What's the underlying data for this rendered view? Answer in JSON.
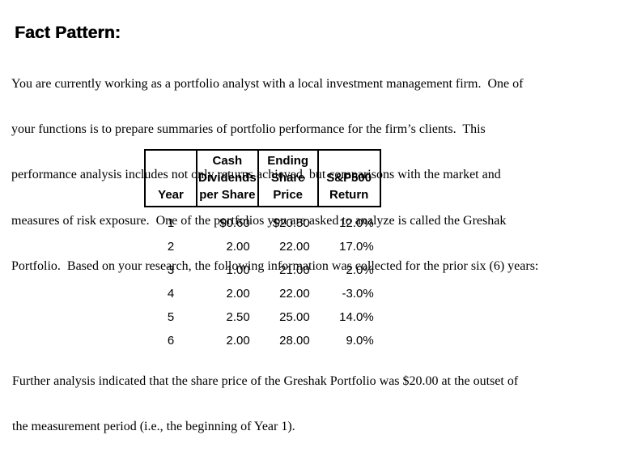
{
  "doc": {
    "heading": "Fact Pattern:",
    "intro_lines": [
      "You are currently working as a portfolio analyst with a local investment management firm.  One of",
      "your functions is to prepare summaries of portfolio performance for the firm’s clients.  This",
      "performance analysis includes not only returns achieved, but comparisons with the market and",
      "measures of risk exposure.  One of the portfolios you are asked to analyze is called the Greshak",
      "Portfolio.  Based on your research, the following information was collected for the prior six (6) years:"
    ],
    "footer_lines": [
      "Further analysis indicated that the share price of the Greshak Portfolio was $20.00 at the outset of",
      "the measurement period (i.e., the beginning of Year 1)."
    ]
  },
  "table": {
    "headers": [
      {
        "lines": [
          "Year"
        ]
      },
      {
        "lines": [
          "Cash",
          "Dividends",
          "per Share"
        ]
      },
      {
        "lines": [
          "Ending",
          "Share",
          "Price"
        ]
      },
      {
        "lines": [
          "S&P500",
          "Return"
        ]
      }
    ],
    "rows": [
      {
        "year": "1",
        "dividend": "$0.60",
        "price": "$20.50",
        "sp500": "12.0%"
      },
      {
        "year": "2",
        "dividend": "2.00",
        "price": "22.00",
        "sp500": "17.0%"
      },
      {
        "year": "3",
        "dividend": "1.00",
        "price": "21.00",
        "sp500": "2.0%"
      },
      {
        "year": "4",
        "dividend": "2.00",
        "price": "22.00",
        "sp500": "-3.0%"
      },
      {
        "year": "5",
        "dividend": "2.50",
        "price": "25.00",
        "sp500": "14.0%"
      },
      {
        "year": "6",
        "dividend": "2.00",
        "price": "28.00",
        "sp500": "9.0%"
      }
    ]
  },
  "colors": {
    "text": "#000000",
    "background": "#ffffff",
    "table_border": "#000000"
  }
}
